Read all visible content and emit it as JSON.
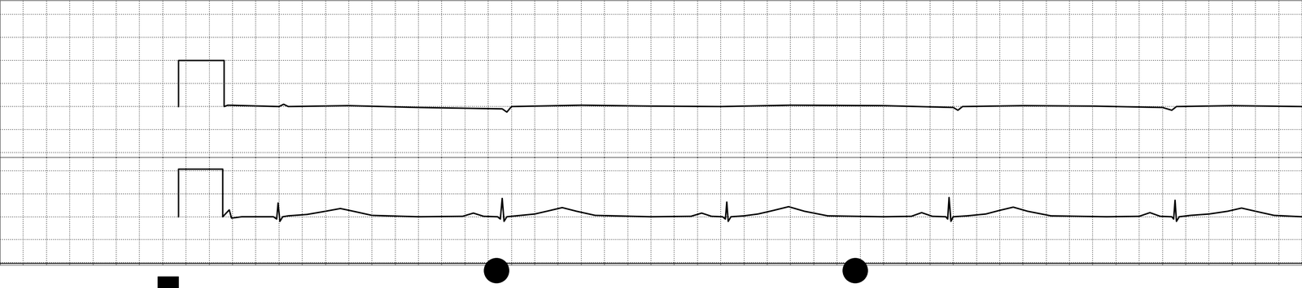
{
  "chart_data": [
    {
      "type": "line",
      "grid": true,
      "tick_labels": false,
      "xlim": [
        0,
        280
      ],
      "xticks": [
        0,
        5,
        10,
        15,
        20,
        25,
        30,
        35,
        40,
        45,
        50,
        55,
        60,
        65,
        70,
        75,
        80,
        85,
        90,
        95,
        100,
        105,
        110,
        115,
        120,
        125,
        130,
        135,
        140,
        145,
        150,
        155,
        160,
        165,
        170,
        175,
        180,
        185,
        190,
        195,
        200,
        205,
        210,
        215,
        220,
        225,
        230,
        235,
        240,
        245,
        250,
        255,
        260,
        265,
        270,
        275,
        280
      ],
      "ylim": [
        -11,
        23
      ],
      "yticks": [
        -10,
        -5,
        0,
        5,
        10,
        15,
        20
      ],
      "x": [
        38.4,
        38.4,
        48.2,
        48.2,
        49,
        60,
        61,
        62,
        75,
        90,
        108,
        109,
        110,
        125,
        140,
        155,
        170,
        190,
        205,
        206,
        207,
        220,
        235,
        250,
        252,
        253,
        265,
        280
      ],
      "series": [
        {
          "color": "#000000",
          "line_style": "solid",
          "values": [
            0,
            10,
            10,
            0,
            0.3,
            0,
            0.5,
            0,
            0.2,
            -0.2,
            -0.5,
            -1.2,
            0,
            0.3,
            0.1,
            0,
            0.3,
            0.2,
            -0.2,
            -0.8,
            0,
            0.2,
            0.1,
            -0.2,
            -0.8,
            0,
            0.2,
            0
          ]
        }
      ]
    },
    {
      "type": "line",
      "grid": true,
      "tick_labels": false,
      "xlim": [
        0,
        280
      ],
      "xticks": [
        0,
        5,
        10,
        15,
        20,
        25,
        30,
        35,
        40,
        45,
        50,
        55,
        60,
        65,
        70,
        75,
        80,
        85,
        90,
        95,
        100,
        105,
        110,
        115,
        120,
        125,
        130,
        135,
        140,
        145,
        150,
        155,
        160,
        165,
        170,
        175,
        180,
        185,
        190,
        195,
        200,
        205,
        210,
        215,
        220,
        225,
        230,
        235,
        240,
        245,
        250,
        255,
        260,
        265,
        270,
        275,
        280
      ],
      "ylim": [
        -10.5,
        13
      ],
      "yticks": [
        -10,
        -5,
        0,
        5,
        10
      ],
      "x": [
        38.4,
        38.4,
        47.9,
        47.9,
        49.3,
        49.8,
        52,
        55,
        58.8,
        59.5,
        59.8,
        60.2,
        60.8,
        62,
        66,
        70,
        73.2,
        76,
        80,
        90,
        99.5,
        101.8,
        104,
        107,
        107.6,
        108,
        108.4,
        109,
        111,
        115,
        118,
        120.9,
        124,
        128,
        140,
        148.6,
        150.9,
        153,
        155.4,
        156,
        156.3,
        156.6,
        157.2,
        160,
        163,
        166,
        169.6,
        173,
        178,
        190,
        196,
        198.2,
        200.5,
        203.4,
        203.8,
        204.1,
        204.5,
        205,
        208,
        212,
        215,
        217.9,
        221,
        226,
        238,
        245,
        247.3,
        249.5,
        252,
        252.4,
        252.7,
        253,
        253.6,
        256,
        260,
        264,
        267,
        270,
        274,
        280
      ],
      "series": [
        {
          "color": "#000000",
          "line_style": "solid",
          "values": [
            0,
            10.4,
            10.4,
            0,
            1.5,
            -0.3,
            0,
            0,
            0,
            -0.5,
            3,
            -1,
            0,
            0.2,
            0.5,
            1.2,
            1.8,
            1.2,
            0.3,
            0,
            0.1,
            0.8,
            0.1,
            0,
            -0.5,
            4,
            -1,
            0,
            0.2,
            0.6,
            1.3,
            2,
            1.2,
            0.3,
            0,
            0.1,
            0.8,
            0.1,
            0,
            -0.5,
            3.2,
            -1,
            0,
            0.2,
            0.6,
            1.3,
            2.2,
            1.2,
            0.2,
            0,
            0.1,
            0.9,
            0.1,
            0,
            -0.5,
            4.2,
            -1,
            0,
            0.2,
            0.6,
            1.4,
            2.1,
            1.2,
            0.2,
            0,
            0.1,
            0.9,
            0.1,
            0,
            -0.5,
            3.6,
            -1,
            0,
            0.3,
            0.6,
            1.2,
            1.9,
            1.2,
            0.3,
            0
          ]
        }
      ]
    }
  ]
}
